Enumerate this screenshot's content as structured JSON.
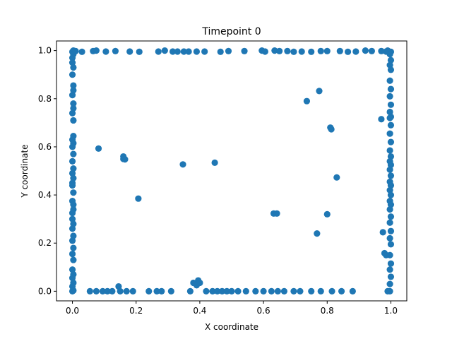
{
  "chart_data": {
    "type": "scatter",
    "title": "Timepoint 0",
    "xlabel": "X coordinate",
    "ylabel": "Y coordinate",
    "xlim": [
      -0.05,
      1.05
    ],
    "ylim": [
      -0.04,
      1.04
    ],
    "xticks": [
      0.0,
      0.2,
      0.4,
      0.6,
      0.8,
      1.0
    ],
    "xtick_labels": [
      "0.0",
      "0.2",
      "0.4",
      "0.6",
      "0.8",
      "1.0"
    ],
    "yticks": [
      0.0,
      0.2,
      0.4,
      0.6,
      0.8,
      1.0
    ],
    "ytick_labels": [
      "0.0",
      "0.2",
      "0.4",
      "0.6",
      "0.8",
      "1.0"
    ],
    "grid": false,
    "legend": null,
    "marker_color": "#1f77b4",
    "series": [
      {
        "points": [
          [
            0.0,
            0.995
          ],
          [
            0.003,
            1.0
          ],
          [
            0.003,
            0.985
          ],
          [
            0.0,
            0.97
          ],
          [
            0.0,
            0.95
          ],
          [
            0.003,
            0.93
          ],
          [
            0.0,
            0.9
          ],
          [
            0.003,
            0.855
          ],
          [
            0.003,
            0.835
          ],
          [
            0.0,
            0.815
          ],
          [
            0.003,
            0.78
          ],
          [
            0.003,
            0.76
          ],
          [
            0.0,
            0.74
          ],
          [
            0.003,
            0.71
          ],
          [
            0.003,
            0.645
          ],
          [
            0.0,
            0.63
          ],
          [
            0.003,
            0.615
          ],
          [
            0.0,
            0.6
          ],
          [
            0.003,
            0.57
          ],
          [
            0.0,
            0.54
          ],
          [
            0.003,
            0.51
          ],
          [
            0.0,
            0.49
          ],
          [
            0.003,
            0.47
          ],
          [
            0.0,
            0.45
          ],
          [
            0.0,
            0.44
          ],
          [
            0.003,
            0.41
          ],
          [
            0.0,
            0.375
          ],
          [
            0.003,
            0.36
          ],
          [
            0.003,
            0.34
          ],
          [
            0.0,
            0.325
          ],
          [
            0.0,
            0.3
          ],
          [
            0.003,
            0.28
          ],
          [
            0.0,
            0.26
          ],
          [
            0.003,
            0.23
          ],
          [
            0.0,
            0.21
          ],
          [
            0.003,
            0.18
          ],
          [
            0.0,
            0.155
          ],
          [
            0.003,
            0.13
          ],
          [
            0.0,
            0.09
          ],
          [
            0.003,
            0.07
          ],
          [
            0.0,
            0.055
          ],
          [
            0.003,
            0.035
          ],
          [
            0.0,
            0.02
          ],
          [
            0.003,
            0.003
          ],
          [
            0.0,
            0.0
          ],
          [
            0.01,
            0.998
          ],
          [
            0.03,
            0.995
          ],
          [
            0.065,
            0.998
          ],
          [
            0.075,
            1.0
          ],
          [
            0.105,
            0.996
          ],
          [
            0.135,
            0.998
          ],
          [
            0.18,
            0.996
          ],
          [
            0.21,
            0.995
          ],
          [
            0.27,
            0.996
          ],
          [
            0.29,
            1.0
          ],
          [
            0.315,
            0.996
          ],
          [
            0.33,
            0.996
          ],
          [
            0.35,
            0.996
          ],
          [
            0.365,
            0.996
          ],
          [
            0.39,
            0.996
          ],
          [
            0.415,
            0.996
          ],
          [
            0.465,
            0.995
          ],
          [
            0.49,
            0.998
          ],
          [
            0.54,
            0.998
          ],
          [
            0.595,
            1.0
          ],
          [
            0.605,
            0.996
          ],
          [
            0.635,
            1.0
          ],
          [
            0.65,
            0.998
          ],
          [
            0.675,
            0.998
          ],
          [
            0.695,
            0.995
          ],
          [
            0.72,
            0.996
          ],
          [
            0.75,
            0.995
          ],
          [
            0.78,
            0.998
          ],
          [
            0.8,
            0.998
          ],
          [
            0.84,
            0.998
          ],
          [
            0.865,
            0.995
          ],
          [
            0.89,
            0.996
          ],
          [
            0.92,
            1.0
          ],
          [
            0.94,
            0.998
          ],
          [
            0.97,
            0.998
          ],
          [
            0.985,
            0.996
          ],
          [
            0.99,
            1.0
          ],
          [
            1.0,
            0.995
          ],
          [
            0.997,
            0.985
          ],
          [
            1.0,
            0.96
          ],
          [
            0.997,
            0.94
          ],
          [
            1.0,
            0.92
          ],
          [
            0.997,
            0.875
          ],
          [
            1.0,
            0.84
          ],
          [
            0.997,
            0.81
          ],
          [
            1.0,
            0.775
          ],
          [
            0.997,
            0.745
          ],
          [
            1.0,
            0.725
          ],
          [
            0.997,
            0.72
          ],
          [
            1.0,
            0.69
          ],
          [
            0.997,
            0.655
          ],
          [
            1.0,
            0.62
          ],
          [
            0.997,
            0.585
          ],
          [
            1.0,
            0.56
          ],
          [
            0.997,
            0.54
          ],
          [
            1.0,
            0.525
          ],
          [
            0.997,
            0.505
          ],
          [
            1.0,
            0.48
          ],
          [
            0.997,
            0.455
          ],
          [
            1.0,
            0.44
          ],
          [
            0.997,
            0.42
          ],
          [
            1.0,
            0.4
          ],
          [
            0.997,
            0.375
          ],
          [
            1.0,
            0.36
          ],
          [
            0.997,
            0.34
          ],
          [
            1.0,
            0.31
          ],
          [
            0.997,
            0.285
          ],
          [
            1.0,
            0.25
          ],
          [
            0.997,
            0.22
          ],
          [
            1.0,
            0.195
          ],
          [
            0.997,
            0.15
          ],
          [
            1.0,
            0.115
          ],
          [
            0.997,
            0.09
          ],
          [
            1.0,
            0.06
          ],
          [
            0.997,
            0.03
          ],
          [
            0.997,
            0.0
          ],
          [
            0.99,
            0.0
          ],
          [
            0.055,
            0.0
          ],
          [
            0.075,
            0.0
          ],
          [
            0.095,
            0.0
          ],
          [
            0.11,
            0.0
          ],
          [
            0.125,
            0.0
          ],
          [
            0.145,
            0.02
          ],
          [
            0.15,
            0.0
          ],
          [
            0.17,
            0.0
          ],
          [
            0.19,
            0.0
          ],
          [
            0.24,
            0.0
          ],
          [
            0.265,
            0.0
          ],
          [
            0.28,
            0.0
          ],
          [
            0.31,
            0.0
          ],
          [
            0.37,
            0.0
          ],
          [
            0.38,
            0.035
          ],
          [
            0.39,
            0.025
          ],
          [
            0.395,
            0.045
          ],
          [
            0.4,
            0.035
          ],
          [
            0.42,
            0.0
          ],
          [
            0.44,
            0.0
          ],
          [
            0.455,
            0.0
          ],
          [
            0.47,
            0.0
          ],
          [
            0.485,
            0.0
          ],
          [
            0.5,
            0.0
          ],
          [
            0.52,
            0.0
          ],
          [
            0.545,
            0.0
          ],
          [
            0.575,
            0.0
          ],
          [
            0.6,
            0.0
          ],
          [
            0.625,
            0.0
          ],
          [
            0.645,
            0.0
          ],
          [
            0.665,
            0.0
          ],
          [
            0.695,
            0.0
          ],
          [
            0.715,
            0.0
          ],
          [
            0.75,
            0.0
          ],
          [
            0.78,
            0.0
          ],
          [
            0.815,
            0.0
          ],
          [
            0.845,
            0.0
          ],
          [
            0.88,
            0.0
          ],
          [
            0.082,
            0.593
          ],
          [
            0.16,
            0.56
          ],
          [
            0.16,
            0.55
          ],
          [
            0.165,
            0.548
          ],
          [
            0.207,
            0.385
          ],
          [
            0.347,
            0.527
          ],
          [
            0.447,
            0.534
          ],
          [
            0.632,
            0.323
          ],
          [
            0.642,
            0.323
          ],
          [
            0.736,
            0.79
          ],
          [
            0.775,
            0.832
          ],
          [
            0.768,
            0.24
          ],
          [
            0.8,
            0.32
          ],
          [
            0.81,
            0.68
          ],
          [
            0.813,
            0.673
          ],
          [
            0.83,
            0.473
          ],
          [
            0.97,
            0.715
          ],
          [
            0.975,
            0.245
          ],
          [
            0.98,
            0.158
          ],
          [
            0.985,
            0.15
          ]
        ]
      }
    ]
  }
}
